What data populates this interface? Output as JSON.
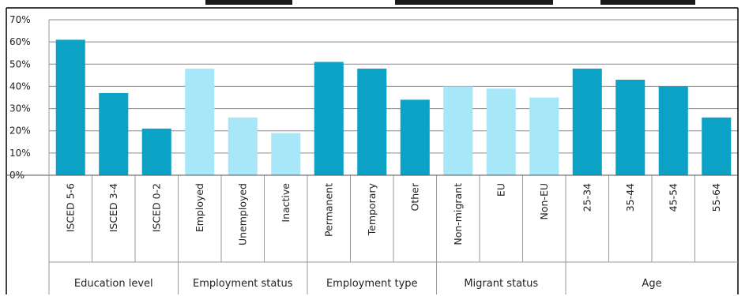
{
  "chart_data": {
    "type": "bar",
    "title": "",
    "xlabel": "",
    "ylabel": "",
    "ylim": [
      0,
      70
    ],
    "y_ticks": [
      "0%",
      "10%",
      "20%",
      "30%",
      "40%",
      "50%",
      "60%",
      "70%"
    ],
    "grid": true,
    "legend": "none",
    "groups": [
      {
        "label": "Education level",
        "color": "#0ba2c6",
        "categories": [
          "ISCED 5-6",
          "ISCED 3-4",
          "ISCED 0-2"
        ],
        "values": [
          61,
          37,
          21
        ]
      },
      {
        "label": "Employment status",
        "color": "#a8e7f8",
        "categories": [
          "Employed",
          "Unemployed",
          "Inactive"
        ],
        "values": [
          48,
          26,
          19
        ]
      },
      {
        "label": "Employment type",
        "color": "#0ba2c6",
        "categories": [
          "Permanent",
          "Temporary",
          "Other"
        ],
        "values": [
          51,
          48,
          34
        ]
      },
      {
        "label": "Migrant status",
        "color": "#a8e7f8",
        "categories": [
          "Non-migrant",
          "EU",
          "Non-EU"
        ],
        "values": [
          40,
          39,
          35
        ]
      },
      {
        "label": "Age",
        "color": "#0ba2c6",
        "categories": [
          "25-34",
          "35-44",
          "45-54",
          "55-64"
        ],
        "values": [
          48,
          43,
          40,
          26
        ]
      }
    ]
  }
}
